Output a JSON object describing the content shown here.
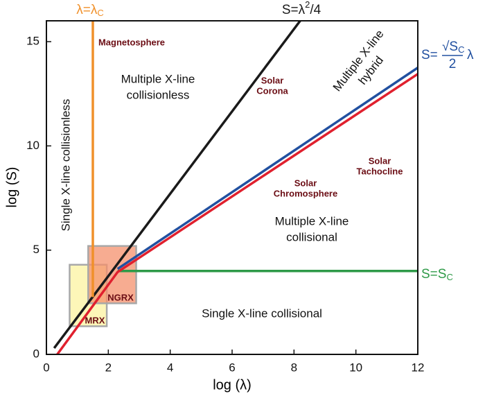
{
  "chart_data": {
    "type": "line",
    "xlabel": "log (λ)",
    "ylabel": "log (S)",
    "xlim": [
      0,
      12
    ],
    "ylim": [
      0,
      16
    ],
    "xticks": [
      0,
      2,
      4,
      6,
      8,
      10,
      12
    ],
    "yticks": [
      0,
      5,
      10,
      15
    ],
    "series": [
      {
        "color": "#1a1a1a",
        "x": [
          0.25,
          8.2
        ],
        "y": [
          0.3,
          16
        ],
        "label": {
          "text": "S=λ",
          "sup": "2",
          "tail": "/4"
        }
      },
      {
        "color": "#2150a0",
        "x": [
          2.3,
          12
        ],
        "y": [
          4.1,
          13.75
        ],
        "label": {
          "prefix": "S=",
          "numerator": "√S",
          "numerator_sub": "C",
          "denominator": "2",
          "suffix": "λ"
        }
      },
      {
        "color": "#e0202e",
        "x": [
          0.35,
          2.3,
          12
        ],
        "y": [
          0,
          3.95,
          13.45
        ]
      },
      {
        "color": "#f0902a",
        "x": [
          1.5,
          1.5
        ],
        "y": [
          2.75,
          16
        ],
        "label": {
          "text": "λ=λ",
          "sub": "C"
        }
      },
      {
        "color": "#2e9a48",
        "x": [
          2.3,
          12
        ],
        "y": [
          4,
          4
        ],
        "label": {
          "text": "S=S",
          "sub": "C"
        }
      }
    ],
    "regions": [
      {
        "label": "MRX",
        "color": "#fdf5b0",
        "x": [
          0.75,
          1.95
        ],
        "y": [
          1.35,
          4.3
        ]
      },
      {
        "label": "NGRX",
        "color": "#f4906c",
        "x": [
          1.35,
          2.9
        ],
        "y": [
          2.45,
          5.2
        ]
      }
    ],
    "annotations": [
      [
        "Single X-line collisionless"
      ],
      [
        "Multiple X-line",
        "collisionless"
      ],
      [
        "Multiple X-line",
        "hybrid"
      ],
      [
        "Multiple X-line",
        "collisional"
      ],
      [
        "Single X-line collisional"
      ]
    ],
    "objects": [
      [
        "Magnetosphere"
      ],
      [
        "Solar",
        "Corona"
      ],
      [
        "Solar",
        "Tachocline"
      ],
      [
        "Solar",
        "Chromosphere"
      ]
    ]
  }
}
